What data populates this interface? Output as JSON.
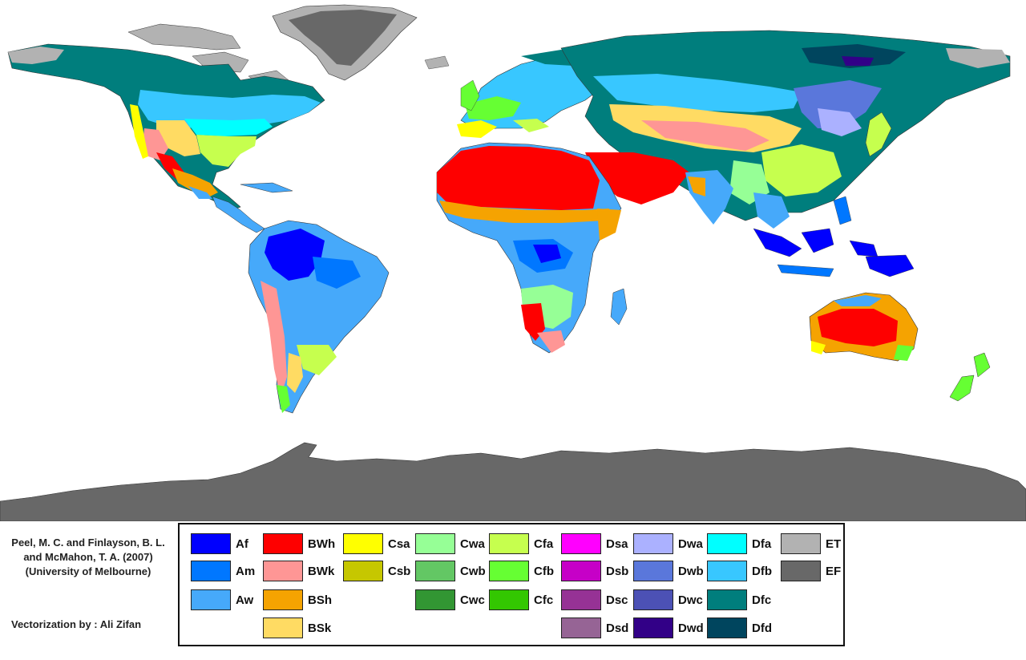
{
  "credits": {
    "line1": "Peel, M. C. and Finlayson, B. L.",
    "line2": "and McMahon, T. A. (2007)",
    "line3": "(University of Melbourne)",
    "vectorization": "Vectorization by : Ali Zifan"
  },
  "legend": [
    {
      "code": "Af",
      "color": "#0000FE"
    },
    {
      "code": "Am",
      "color": "#0077FF"
    },
    {
      "code": "Aw",
      "color": "#46A9FA"
    },
    {
      "code": "BWh",
      "color": "#FE0000"
    },
    {
      "code": "BWk",
      "color": "#FE9695"
    },
    {
      "code": "BSh",
      "color": "#F5A301"
    },
    {
      "code": "BSk",
      "color": "#FFDB63"
    },
    {
      "code": "Csa",
      "color": "#FFFF00"
    },
    {
      "code": "Csb",
      "color": "#C6C700"
    },
    {
      "code": "Cwa",
      "color": "#96FF96"
    },
    {
      "code": "Cwb",
      "color": "#63C764"
    },
    {
      "code": "Cwc",
      "color": "#329633"
    },
    {
      "code": "Cfa",
      "color": "#C6FF4E"
    },
    {
      "code": "Cfb",
      "color": "#66FF33"
    },
    {
      "code": "Cfc",
      "color": "#33C701"
    },
    {
      "code": "Dsa",
      "color": "#FF00FE"
    },
    {
      "code": "Dsb",
      "color": "#C600C7"
    },
    {
      "code": "Dsc",
      "color": "#963295"
    },
    {
      "code": "Dsd",
      "color": "#966495"
    },
    {
      "code": "Dwa",
      "color": "#ABB1FF"
    },
    {
      "code": "Dwb",
      "color": "#5A77DB"
    },
    {
      "code": "Dwc",
      "color": "#4C51B5"
    },
    {
      "code": "Dwd",
      "color": "#320087"
    },
    {
      "code": "Dfa",
      "color": "#00FFFF"
    },
    {
      "code": "Dfb",
      "color": "#38C7FF"
    },
    {
      "code": "Dfc",
      "color": "#007E7D"
    },
    {
      "code": "Dfd",
      "color": "#00455E"
    },
    {
      "code": "ET",
      "color": "#B2B2B2"
    },
    {
      "code": "EF",
      "color": "#686868"
    }
  ]
}
